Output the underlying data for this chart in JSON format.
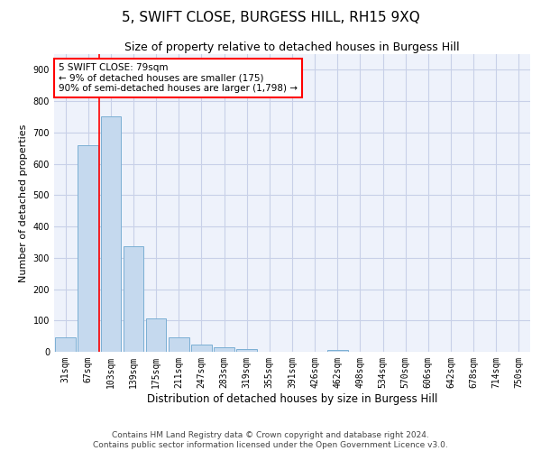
{
  "title": "5, SWIFT CLOSE, BURGESS HILL, RH15 9XQ",
  "subtitle": "Size of property relative to detached houses in Burgess Hill",
  "xlabel": "Distribution of detached houses by size in Burgess Hill",
  "ylabel": "Number of detached properties",
  "categories": [
    "31sqm",
    "67sqm",
    "103sqm",
    "139sqm",
    "175sqm",
    "211sqm",
    "247sqm",
    "283sqm",
    "319sqm",
    "355sqm",
    "391sqm",
    "426sqm",
    "462sqm",
    "498sqm",
    "534sqm",
    "570sqm",
    "606sqm",
    "642sqm",
    "678sqm",
    "714sqm",
    "750sqm"
  ],
  "values": [
    47,
    660,
    750,
    338,
    107,
    47,
    22,
    13,
    9,
    0,
    0,
    0,
    5,
    0,
    0,
    0,
    0,
    0,
    0,
    0,
    0
  ],
  "bar_color": "#c5d9ee",
  "bar_edge_color": "#7bafd4",
  "vline_index": 1.5,
  "annotation_text": "5 SWIFT CLOSE: 79sqm\n← 9% of detached houses are smaller (175)\n90% of semi-detached houses are larger (1,798) →",
  "annotation_box_color": "white",
  "annotation_box_edge_color": "red",
  "vline_color": "red",
  "ylim": [
    0,
    950
  ],
  "yticks": [
    0,
    100,
    200,
    300,
    400,
    500,
    600,
    700,
    800,
    900
  ],
  "footer1": "Contains HM Land Registry data © Crown copyright and database right 2024.",
  "footer2": "Contains public sector information licensed under the Open Government Licence v3.0.",
  "background_color": "#eef2fb",
  "grid_color": "#c8d0e8",
  "title_fontsize": 11,
  "subtitle_fontsize": 9,
  "xlabel_fontsize": 8.5,
  "ylabel_fontsize": 8,
  "tick_fontsize": 7,
  "footer_fontsize": 6.5,
  "annotation_fontsize": 7.5
}
